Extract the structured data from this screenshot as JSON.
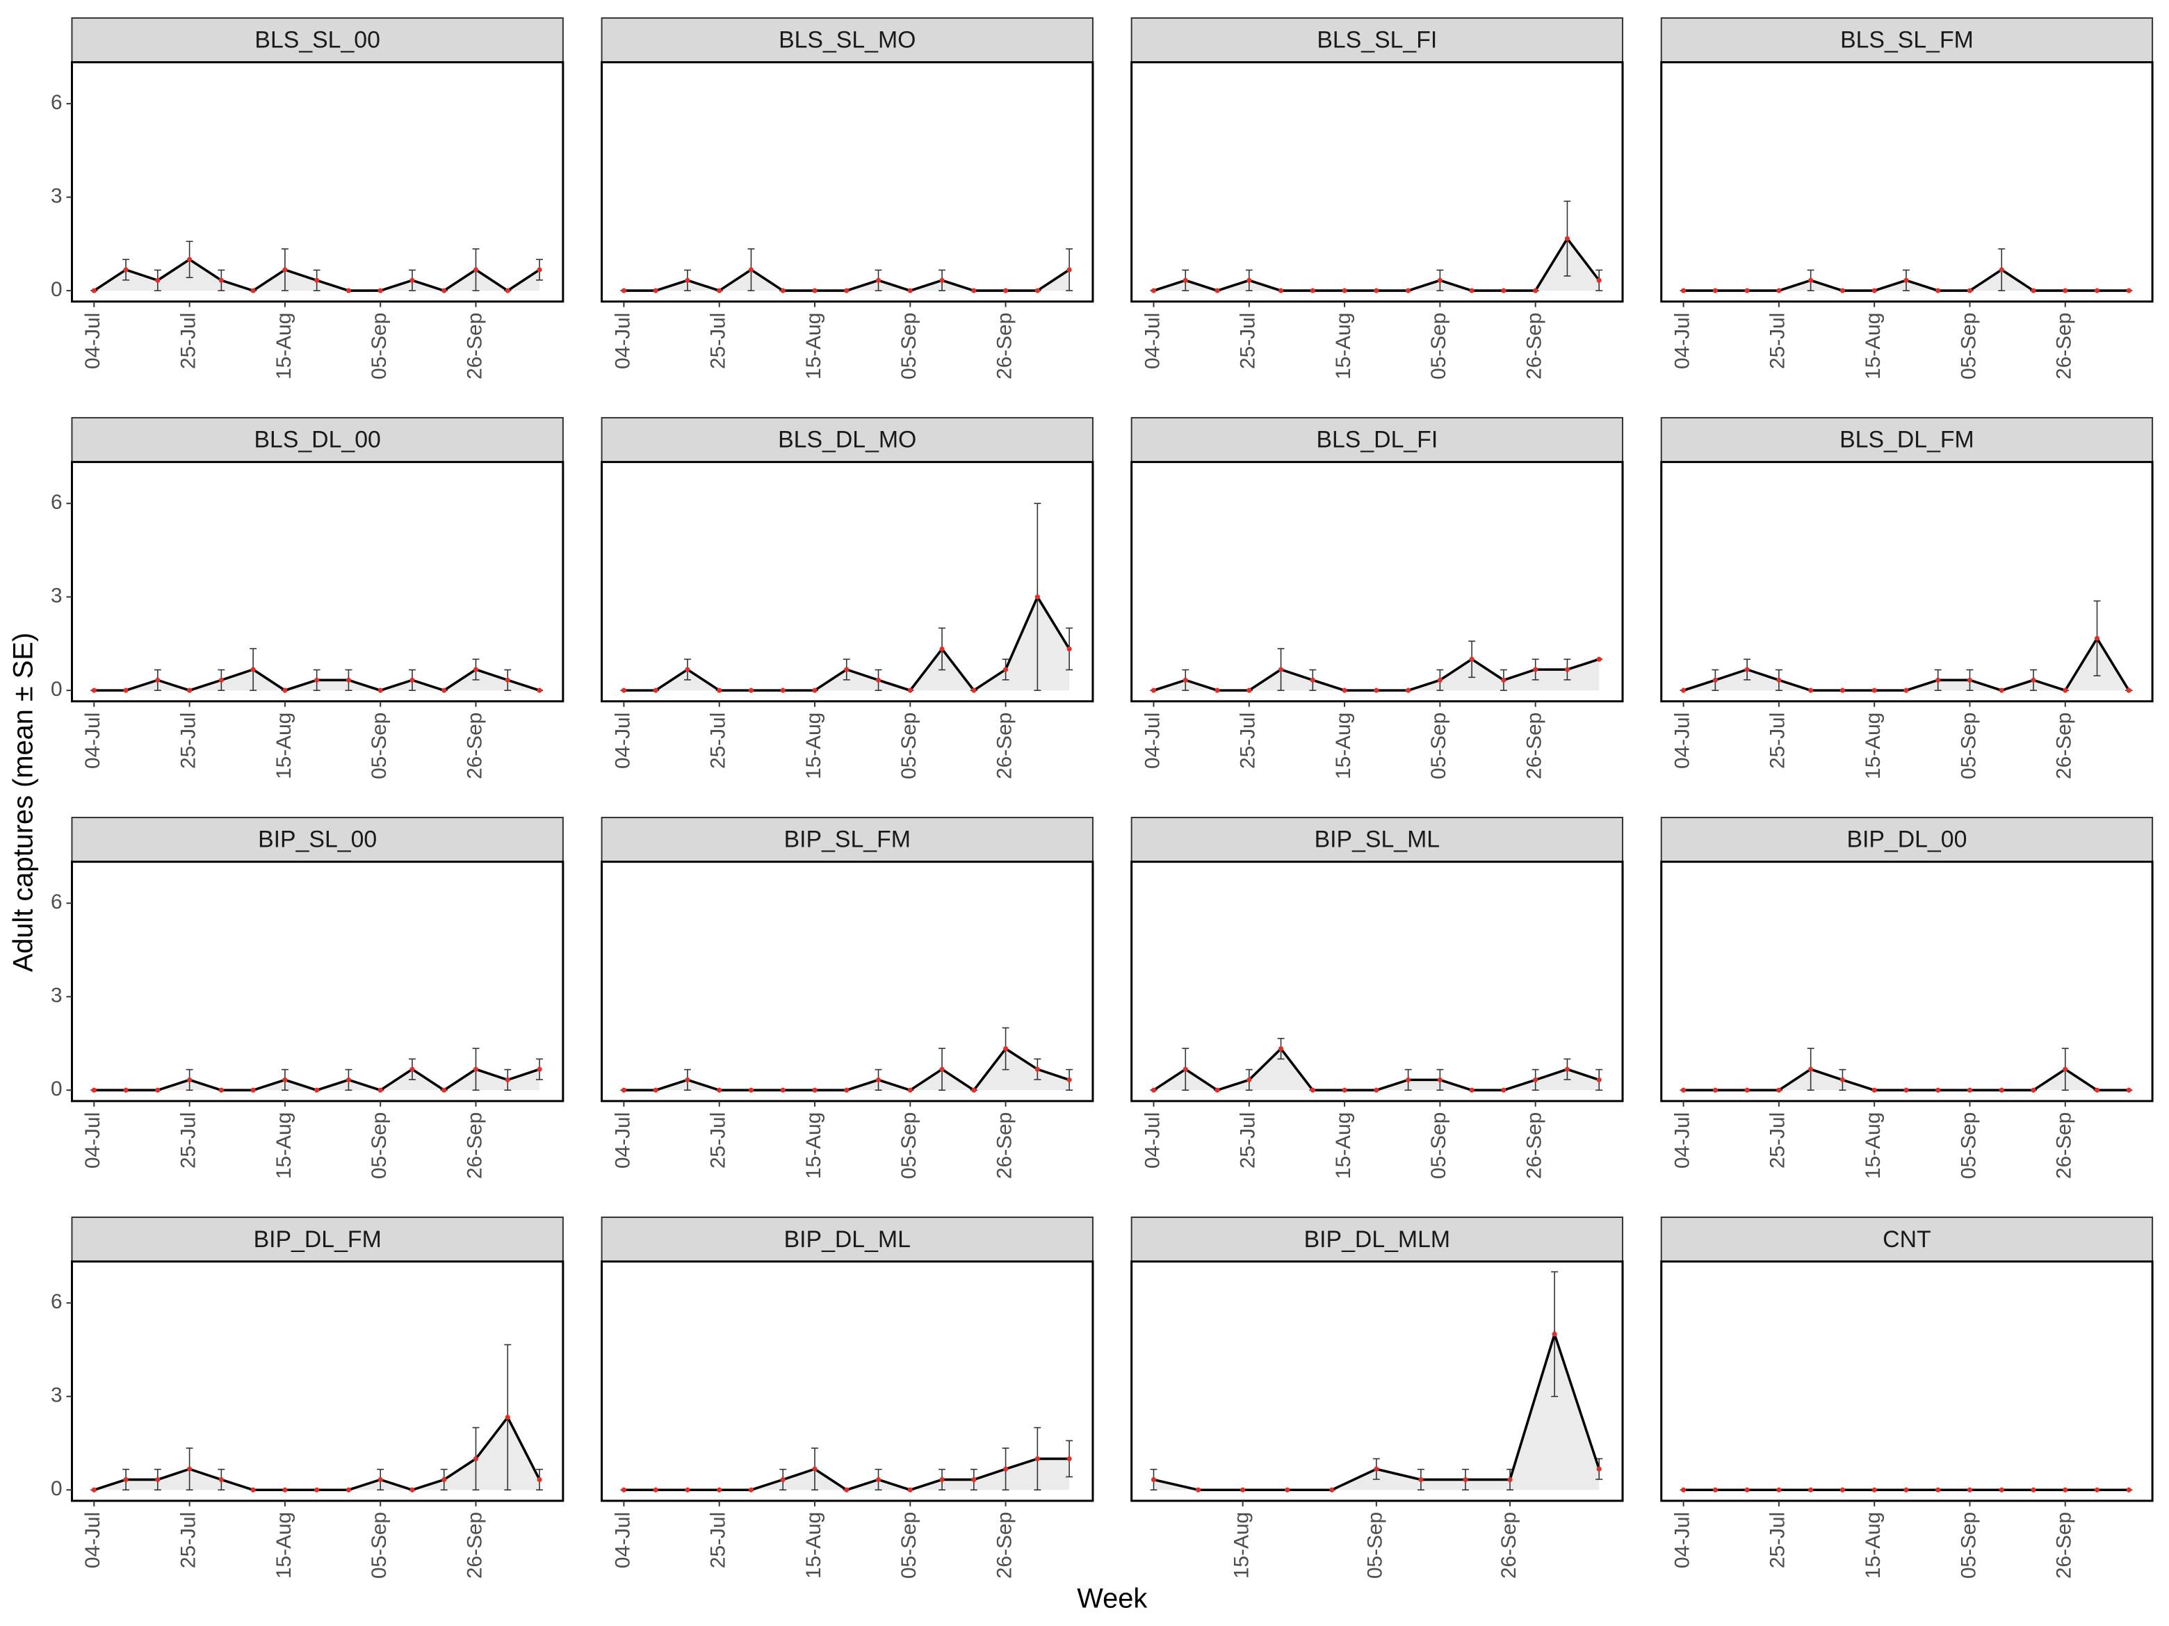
{
  "chart_data": {
    "type": "line",
    "ylabel": "Adult captures (mean ± SE)",
    "xlabel": "Week",
    "ylim": [
      -0.35,
      7.33
    ],
    "yticks": [
      0,
      3,
      6
    ],
    "panels": [
      {
        "title": "BLS_SL_00",
        "categories": [
          "04-Jul",
          null,
          null,
          "25-Jul",
          null,
          null,
          "15-Aug",
          null,
          null,
          "05-Sep",
          null,
          null,
          "26-Sep",
          null,
          null
        ],
        "values": [
          0,
          0.67,
          0.33,
          1,
          0.33,
          0,
          0.67,
          0.33,
          0,
          0,
          0.33,
          0,
          0.67,
          0,
          0.67
        ],
        "errors": [
          0,
          0.33,
          0.33,
          0.58,
          0.33,
          0,
          0.67,
          0.33,
          0,
          0,
          0.33,
          0,
          0.67,
          0,
          0.33
        ]
      },
      {
        "title": "BLS_SL_MO",
        "categories": [
          "04-Jul",
          null,
          null,
          "25-Jul",
          null,
          null,
          "15-Aug",
          null,
          null,
          "05-Sep",
          null,
          null,
          "26-Sep",
          null,
          null
        ],
        "values": [
          0,
          0,
          0.33,
          0,
          0.67,
          0,
          0,
          0,
          0.33,
          0,
          0.33,
          0,
          0,
          0,
          0.67
        ],
        "errors": [
          0,
          0,
          0.33,
          0,
          0.67,
          0,
          0,
          0,
          0.33,
          0,
          0.33,
          0,
          0,
          0,
          0.67
        ]
      },
      {
        "title": "BLS_SL_FI",
        "categories": [
          "04-Jul",
          null,
          null,
          "25-Jul",
          null,
          null,
          "15-Aug",
          null,
          null,
          "05-Sep",
          null,
          null,
          "26-Sep",
          null,
          null
        ],
        "values": [
          0,
          0.33,
          0,
          0.33,
          0,
          0,
          0,
          0,
          0,
          0.33,
          0,
          0,
          0,
          1.67,
          0.33
        ],
        "errors": [
          0,
          0.33,
          0,
          0.33,
          0,
          0,
          0,
          0,
          0,
          0.33,
          0,
          0,
          0,
          1.2,
          0.33
        ]
      },
      {
        "title": "BLS_SL_FM",
        "categories": [
          "04-Jul",
          null,
          null,
          "25-Jul",
          null,
          null,
          "15-Aug",
          null,
          null,
          "05-Sep",
          null,
          null,
          "26-Sep",
          null,
          null
        ],
        "values": [
          0,
          0,
          0,
          0,
          0.33,
          0,
          0,
          0.33,
          0,
          0,
          0.67,
          0,
          0,
          0,
          0
        ],
        "errors": [
          0,
          0,
          0,
          0,
          0.33,
          0,
          0,
          0.33,
          0,
          0,
          0.67,
          0,
          0,
          0,
          0
        ]
      },
      {
        "title": "BLS_DL_00",
        "categories": [
          "04-Jul",
          null,
          null,
          "25-Jul",
          null,
          null,
          "15-Aug",
          null,
          null,
          "05-Sep",
          null,
          null,
          "26-Sep",
          null,
          null
        ],
        "values": [
          0,
          0,
          0.33,
          0,
          0.33,
          0.67,
          0,
          0.33,
          0.33,
          0,
          0.33,
          0,
          0.67,
          0.33,
          0
        ],
        "errors": [
          0,
          0,
          0.33,
          0,
          0.33,
          0.67,
          0,
          0.33,
          0.33,
          0,
          0.33,
          0,
          0.33,
          0.33,
          0
        ]
      },
      {
        "title": "BLS_DL_MO",
        "categories": [
          "04-Jul",
          null,
          null,
          "25-Jul",
          null,
          null,
          "15-Aug",
          null,
          null,
          "05-Sep",
          null,
          null,
          "26-Sep",
          null,
          null
        ],
        "values": [
          0,
          0,
          0.67,
          0,
          0,
          0,
          0,
          0.67,
          0.33,
          0,
          1.33,
          0,
          0.67,
          3,
          1.33
        ],
        "errors": [
          0,
          0,
          0.33,
          0,
          0,
          0,
          0,
          0.33,
          0.33,
          0,
          0.67,
          0,
          0.33,
          3,
          0.67
        ]
      },
      {
        "title": "BLS_DL_FI",
        "categories": [
          "04-Jul",
          null,
          null,
          "25-Jul",
          null,
          null,
          "15-Aug",
          null,
          null,
          "05-Sep",
          null,
          null,
          "26-Sep",
          null,
          null
        ],
        "values": [
          0,
          0.33,
          0,
          0,
          0.67,
          0.33,
          0,
          0,
          0,
          0.33,
          1,
          0.33,
          0.67,
          0.67,
          1
        ],
        "errors": [
          0,
          0.33,
          0,
          0,
          0.67,
          0.33,
          0,
          0,
          0,
          0.33,
          0.58,
          0.33,
          0.33,
          0.33,
          0
        ]
      },
      {
        "title": "BLS_DL_FM",
        "categories": [
          "04-Jul",
          null,
          null,
          "25-Jul",
          null,
          null,
          "15-Aug",
          null,
          null,
          "05-Sep",
          null,
          null,
          "26-Sep",
          null,
          null
        ],
        "values": [
          0,
          0.33,
          0.67,
          0.33,
          0,
          0,
          0,
          0,
          0.33,
          0.33,
          0,
          0.33,
          0,
          1.67,
          0
        ],
        "errors": [
          0,
          0.33,
          0.33,
          0.33,
          0,
          0,
          0,
          0,
          0.33,
          0.33,
          0,
          0.33,
          0,
          1.2,
          0
        ]
      },
      {
        "title": "BIP_SL_00",
        "categories": [
          "04-Jul",
          null,
          null,
          "25-Jul",
          null,
          null,
          "15-Aug",
          null,
          null,
          "05-Sep",
          null,
          null,
          "26-Sep",
          null,
          null
        ],
        "values": [
          0,
          0,
          0,
          0.33,
          0,
          0,
          0.33,
          0,
          0.33,
          0,
          0.67,
          0,
          0.67,
          0.33,
          0.67
        ],
        "errors": [
          0,
          0,
          0,
          0.33,
          0,
          0,
          0.33,
          0,
          0.33,
          0,
          0.33,
          0,
          0.67,
          0.33,
          0.33
        ]
      },
      {
        "title": "BIP_SL_FM",
        "categories": [
          "04-Jul",
          null,
          null,
          "25-Jul",
          null,
          null,
          "15-Aug",
          null,
          null,
          "05-Sep",
          null,
          null,
          "26-Sep",
          null,
          null
        ],
        "values": [
          0,
          0,
          0.33,
          0,
          0,
          0,
          0,
          0,
          0.33,
          0,
          0.67,
          0,
          1.33,
          0.67,
          0.33
        ],
        "errors": [
          0,
          0,
          0.33,
          0,
          0,
          0,
          0,
          0,
          0.33,
          0,
          0.67,
          0,
          0.67,
          0.33,
          0.33
        ]
      },
      {
        "title": "BIP_SL_ML",
        "categories": [
          "04-Jul",
          null,
          null,
          "25-Jul",
          null,
          null,
          "15-Aug",
          null,
          null,
          "05-Sep",
          null,
          null,
          "26-Sep",
          null,
          null
        ],
        "values": [
          0,
          0.67,
          0,
          0.33,
          1.33,
          0,
          0,
          0,
          0.33,
          0.33,
          0,
          0,
          0.33,
          0.67,
          0.33
        ],
        "errors": [
          0,
          0.67,
          0,
          0.33,
          0.33,
          0,
          0,
          0,
          0.33,
          0.33,
          0,
          0,
          0.33,
          0.33,
          0.33
        ]
      },
      {
        "title": "BIP_DL_00",
        "categories": [
          "04-Jul",
          null,
          null,
          "25-Jul",
          null,
          null,
          "15-Aug",
          null,
          null,
          "05-Sep",
          null,
          null,
          "26-Sep",
          null,
          null
        ],
        "values": [
          0,
          0,
          0,
          0,
          0.67,
          0.33,
          0,
          0,
          0,
          0,
          0,
          0,
          0.67,
          0,
          0
        ],
        "errors": [
          0,
          0,
          0,
          0,
          0.67,
          0.33,
          0,
          0,
          0,
          0,
          0,
          0,
          0.67,
          0,
          0
        ]
      },
      {
        "title": "BIP_DL_FM",
        "categories": [
          "04-Jul",
          null,
          null,
          "25-Jul",
          null,
          null,
          "15-Aug",
          null,
          null,
          "05-Sep",
          null,
          null,
          "26-Sep",
          null,
          null
        ],
        "values": [
          0,
          0.33,
          0.33,
          0.67,
          0.33,
          0,
          0,
          0,
          0,
          0.33,
          0,
          0.33,
          1,
          2.33,
          0.33
        ],
        "errors": [
          0,
          0.33,
          0.33,
          0.67,
          0.33,
          0,
          0,
          0,
          0,
          0.33,
          0,
          0.33,
          1,
          2.33,
          0.33
        ]
      },
      {
        "title": "BIP_DL_ML",
        "categories": [
          "04-Jul",
          null,
          null,
          "25-Jul",
          null,
          null,
          "15-Aug",
          null,
          null,
          "05-Sep",
          null,
          null,
          "26-Sep",
          null,
          null
        ],
        "values": [
          0,
          0,
          0,
          0,
          0,
          0.33,
          0.67,
          0,
          0.33,
          0,
          0.33,
          0.33,
          0.67,
          1,
          1
        ],
        "errors": [
          0,
          0,
          0,
          0,
          0,
          0.33,
          0.67,
          0,
          0.33,
          0,
          0.33,
          0.33,
          0.67,
          1,
          0.58
        ]
      },
      {
        "title": "BIP_DL_MLM",
        "categories": [
          null,
          null,
          "15-Aug",
          null,
          null,
          "05-Sep",
          null,
          null,
          "26-Sep",
          null,
          null
        ],
        "values": [
          0.33,
          0,
          0,
          0,
          0,
          0.67,
          0.33,
          0.33,
          0.33,
          5,
          0.67
        ],
        "errors": [
          0.33,
          0,
          0,
          0,
          0,
          0.33,
          0.33,
          0.33,
          0.33,
          2,
          0.33
        ]
      },
      {
        "title": "CNT",
        "categories": [
          "04-Jul",
          null,
          null,
          "25-Jul",
          null,
          null,
          "15-Aug",
          null,
          null,
          "05-Sep",
          null,
          null,
          "26-Sep",
          null,
          null
        ],
        "values": [
          0,
          0,
          0,
          0,
          0,
          0,
          0,
          0,
          0,
          0,
          0,
          0,
          0,
          0,
          0
        ],
        "errors": [
          0,
          0,
          0,
          0,
          0,
          0,
          0,
          0,
          0,
          0,
          0,
          0,
          0,
          0,
          0
        ]
      }
    ]
  }
}
